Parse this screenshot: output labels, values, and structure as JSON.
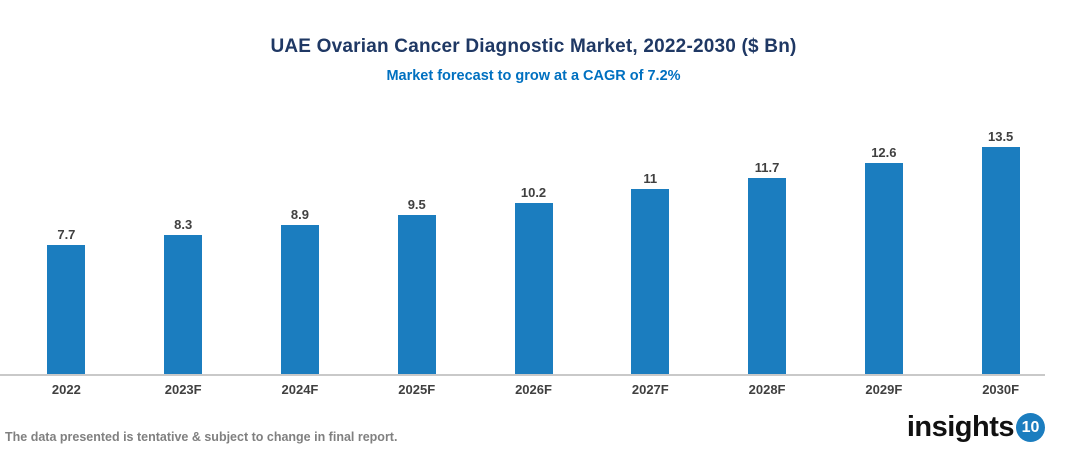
{
  "header": {
    "title": "UAE Ovarian Cancer Diagnostic Market, 2022-2030 ($ Bn)",
    "subtitle": "Market forecast to grow at a CAGR of 7.2%"
  },
  "chart_data": {
    "type": "bar",
    "categories": [
      "2022",
      "2023F",
      "2024F",
      "2025F",
      "2026F",
      "2027F",
      "2028F",
      "2029F",
      "2030F"
    ],
    "values": [
      7.7,
      8.3,
      8.9,
      9.5,
      10.2,
      11,
      11.7,
      12.6,
      13.5
    ],
    "title": "UAE Ovarian Cancer Diagnostic Market, 2022-2030 ($ Bn)",
    "subtitle": "Market forecast to grow at a CAGR of 7.2%",
    "xlabel": "",
    "ylabel": "",
    "ylim": [
      0,
      14
    ],
    "grid": false,
    "data_labels": true,
    "legend": false,
    "bar_color": "#1b7dbf"
  },
  "footer": {
    "disclaimer": "The data presented is tentative & subject to change in final report.",
    "logo_text": "insights",
    "logo_badge": "10"
  },
  "colors": {
    "title": "#1f3864",
    "subtitle": "#0070c0",
    "bar": "#1b7dbf",
    "axis_line": "#c9c9c9",
    "label": "#404040",
    "disclaimer": "#808080",
    "logo_badge_bg": "#1b7dbf"
  }
}
